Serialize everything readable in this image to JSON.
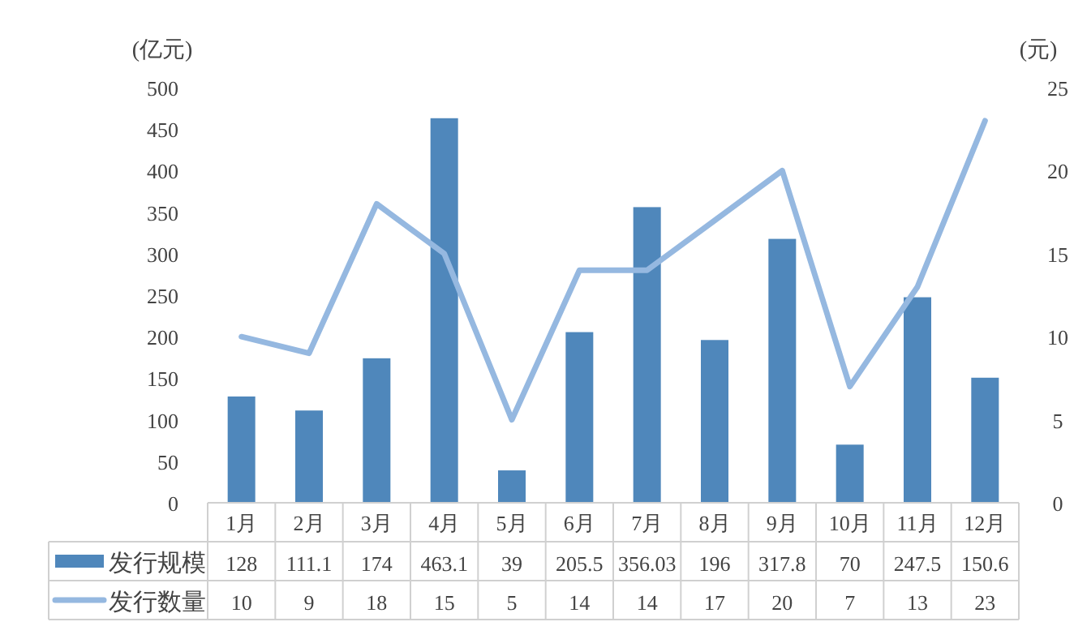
{
  "chart_data": {
    "type": "bar",
    "ylabel": "(亿元)",
    "y2label": "(元)",
    "categories": [
      "1月",
      "2月",
      "3月",
      "4月",
      "5月",
      "6月",
      "7月",
      "8月",
      "9月",
      "10月",
      "11月",
      "12月"
    ],
    "series": [
      {
        "name": "发行规模",
        "color": "#4f87bb",
        "values": [
          128,
          111.1,
          174,
          463.1,
          39,
          205.5,
          356.03,
          196,
          317.8,
          70,
          247.5,
          150.6
        ]
      },
      {
        "name": "发行数量",
        "type": "line",
        "axis": "y2",
        "color": "#95b8e0",
        "values": [
          10,
          9,
          18,
          15,
          5,
          14,
          14,
          17,
          20,
          7,
          13,
          23
        ]
      }
    ],
    "ylim": [
      0,
      500
    ],
    "yticks": [
      0,
      50,
      100,
      150,
      200,
      250,
      300,
      350,
      400,
      450,
      500
    ],
    "y2lim": [
      0,
      25
    ],
    "y2ticks": [
      0,
      5,
      10,
      15,
      20,
      25
    ],
    "data_labels": true,
    "legend": "bottom",
    "grid": false,
    "marker": "none",
    "line_style": "solid"
  }
}
